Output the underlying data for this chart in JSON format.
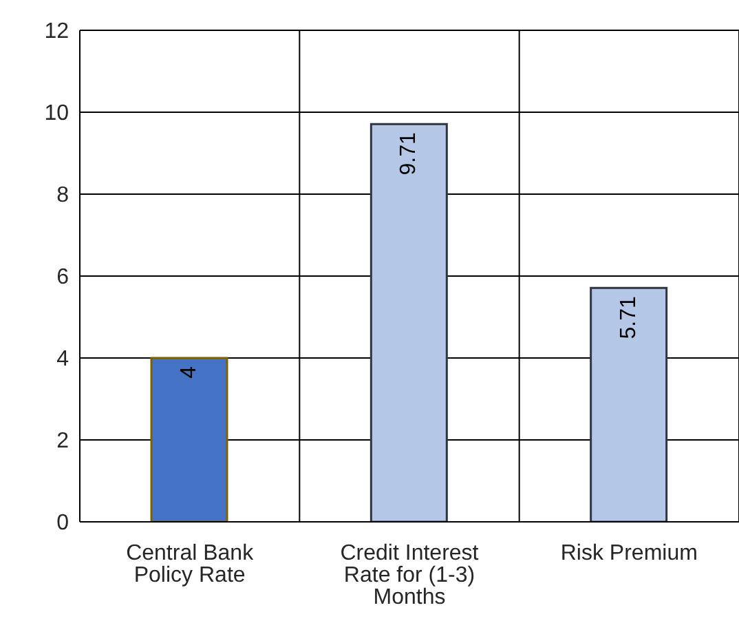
{
  "chart_data": {
    "type": "bar",
    "categories": [
      "Central Bank Policy Rate",
      "Credit Interest Rate for (1-3) Months",
      "Risk Premium"
    ],
    "values": [
      4,
      9.71,
      5.71
    ],
    "colors": [
      "#4472c4",
      "#b4c7e7",
      "#b4c7e7"
    ],
    "ylim": [
      0,
      12
    ],
    "yticks": [
      0,
      2,
      4,
      6,
      8,
      10,
      12
    ],
    "grid": true,
    "data_labels": true
  }
}
